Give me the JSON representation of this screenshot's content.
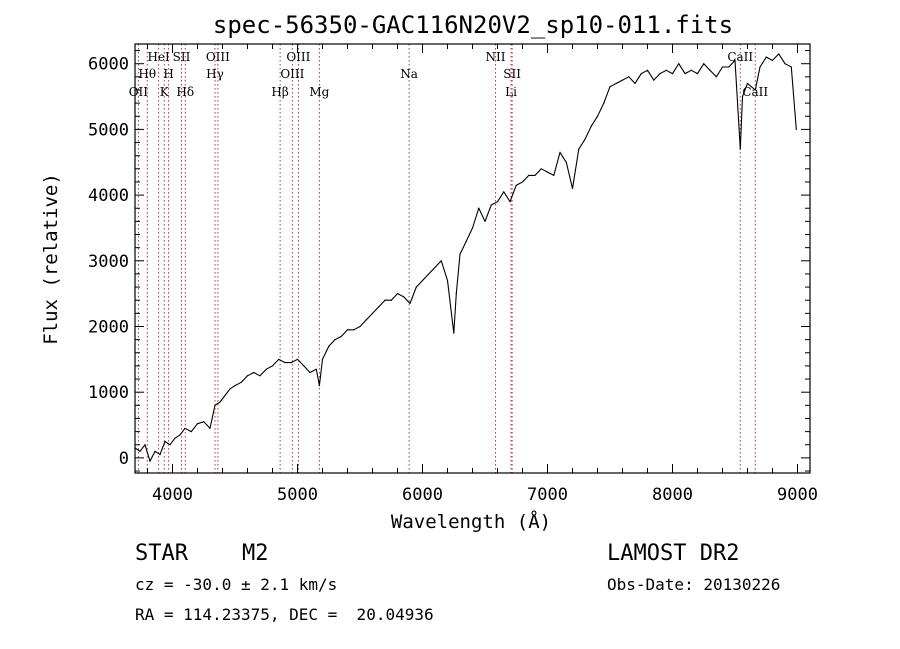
{
  "chart_data": {
    "type": "line",
    "title": "spec-56350-GAC116N20V2_sp10-011.fits",
    "xlabel": "Wavelength (Å)",
    "ylabel": "Flux (relative)",
    "xlim": [
      3700,
      9100
    ],
    "ylim": [
      -230,
      6300
    ],
    "x_ticks": [
      4000,
      5000,
      6000,
      7000,
      8000,
      9000
    ],
    "y_ticks": [
      0,
      1000,
      2000,
      3000,
      4000,
      5000,
      6000
    ],
    "grid": false,
    "series": [
      {
        "color": "#000000",
        "x": [
          3700,
          3740,
          3780,
          3820,
          3860,
          3900,
          3940,
          3980,
          4020,
          4060,
          4100,
          4150,
          4200,
          4250,
          4300,
          4340,
          4380,
          4420,
          4460,
          4500,
          4550,
          4600,
          4650,
          4700,
          4750,
          4800,
          4850,
          4900,
          4950,
          5000,
          5050,
          5100,
          5150,
          5175,
          5200,
          5250,
          5300,
          5350,
          5400,
          5450,
          5500,
          5550,
          5600,
          5650,
          5700,
          5750,
          5800,
          5850,
          5900,
          5950,
          6000,
          6050,
          6100,
          6150,
          6200,
          6250,
          6270,
          6300,
          6350,
          6400,
          6450,
          6500,
          6550,
          6600,
          6650,
          6700,
          6750,
          6800,
          6850,
          6900,
          6950,
          7000,
          7050,
          7100,
          7150,
          7200,
          7250,
          7300,
          7350,
          7400,
          7450,
          7500,
          7550,
          7600,
          7650,
          7700,
          7750,
          7800,
          7850,
          7900,
          7950,
          8000,
          8050,
          8100,
          8150,
          8200,
          8250,
          8300,
          8350,
          8400,
          8450,
          8500,
          8542,
          8560,
          8600,
          8662,
          8700,
          8750,
          8800,
          8850,
          8900,
          8950,
          8990
        ],
        "y": [
          150,
          100,
          200,
          -50,
          100,
          50,
          250,
          200,
          300,
          350,
          450,
          400,
          520,
          550,
          450,
          800,
          850,
          950,
          1050,
          1100,
          1150,
          1250,
          1300,
          1250,
          1350,
          1400,
          1500,
          1450,
          1450,
          1500,
          1400,
          1300,
          1350,
          1100,
          1500,
          1700,
          1800,
          1850,
          1950,
          1950,
          2000,
          2100,
          2200,
          2300,
          2400,
          2400,
          2500,
          2450,
          2350,
          2600,
          2700,
          2800,
          2900,
          3000,
          2700,
          1900,
          2500,
          3100,
          3300,
          3500,
          3800,
          3600,
          3850,
          3900,
          4050,
          3900,
          4150,
          4200,
          4300,
          4300,
          4400,
          4350,
          4300,
          4650,
          4500,
          4100,
          4700,
          4850,
          5050,
          5200,
          5400,
          5650,
          5700,
          5750,
          5800,
          5700,
          5850,
          5900,
          5750,
          5850,
          5900,
          5850,
          6000,
          5850,
          5900,
          5850,
          6000,
          5900,
          5800,
          5950,
          5950,
          6050,
          4700,
          5500,
          5700,
          5600,
          5950,
          6100,
          6050,
          6150,
          6000,
          5950,
          5000
        ]
      }
    ],
    "lines": [
      {
        "x": 3727,
        "label": "OII",
        "row": 3
      },
      {
        "x": 3798,
        "label": "Hθ",
        "row": 2
      },
      {
        "x": 3889,
        "label": "HeI",
        "row": 1
      },
      {
        "x": 3934,
        "label": "K",
        "row": 3
      },
      {
        "x": 3969,
        "label": "H",
        "row": 2
      },
      {
        "x": 4072,
        "label": "SII",
        "row": 1
      },
      {
        "x": 4102,
        "label": "Hδ",
        "row": 3
      },
      {
        "x": 4340,
        "label": "Hγ",
        "row": 2
      },
      {
        "x": 4363,
        "label": "OIII",
        "row": 1
      },
      {
        "x": 4861,
        "label": "Hβ",
        "row": 3
      },
      {
        "x": 4959,
        "label": "OIII",
        "row": 2
      },
      {
        "x": 5007,
        "label": "OIII",
        "row": 1
      },
      {
        "x": 5175,
        "label": "Mg",
        "row": 3
      },
      {
        "x": 5893,
        "label": "Na",
        "row": 2
      },
      {
        "x": 6584,
        "label": "NII",
        "row": 1
      },
      {
        "x": 6717,
        "label": "SII",
        "row": 2
      },
      {
        "x": 6708,
        "label": "Li",
        "row": 3
      },
      {
        "x": 8542,
        "label": "CaII",
        "row": 1
      },
      {
        "x": 8662,
        "label": "CaII",
        "row": 3
      }
    ]
  },
  "footer": {
    "object_class": "STAR",
    "subclass": "M2",
    "survey": "LAMOST DR2",
    "redshift": "cz = -30.0 ± 2.1 km/s",
    "obs_date": "Obs-Date: 20130226",
    "coords": "RA = 114.23375, DEC =  20.04936"
  }
}
